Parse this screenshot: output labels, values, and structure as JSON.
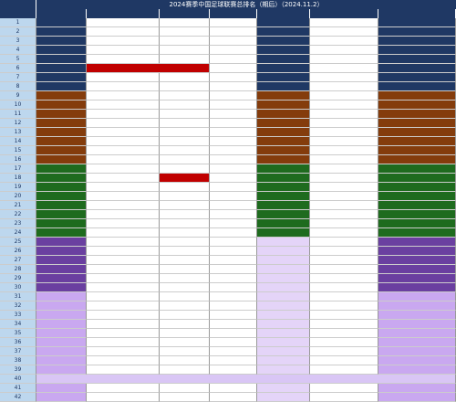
{
  "header": {
    "title": "2024赛季中国足球联赛总排名（期后）（2024.11.2）"
  },
  "tiers": [
    {
      "color": "#1f3864",
      "ranks": [
        1,
        2,
        3,
        4,
        5,
        6,
        7,
        8
      ]
    },
    {
      "color": "#843c0c",
      "ranks": [
        9,
        10,
        11,
        12,
        13,
        14,
        15,
        16
      ]
    },
    {
      "color": "#1e6b1e",
      "ranks": [
        17,
        18,
        19,
        20,
        21,
        22,
        23,
        24
      ]
    },
    {
      "color": "#6a3fa0",
      "ranks": [
        25,
        26,
        27,
        28,
        29,
        30
      ]
    },
    {
      "color": "#c9a8f0",
      "ranks": [
        31,
        32,
        33,
        34,
        35,
        36,
        37,
        38,
        39,
        40,
        41,
        42
      ]
    }
  ]
}
